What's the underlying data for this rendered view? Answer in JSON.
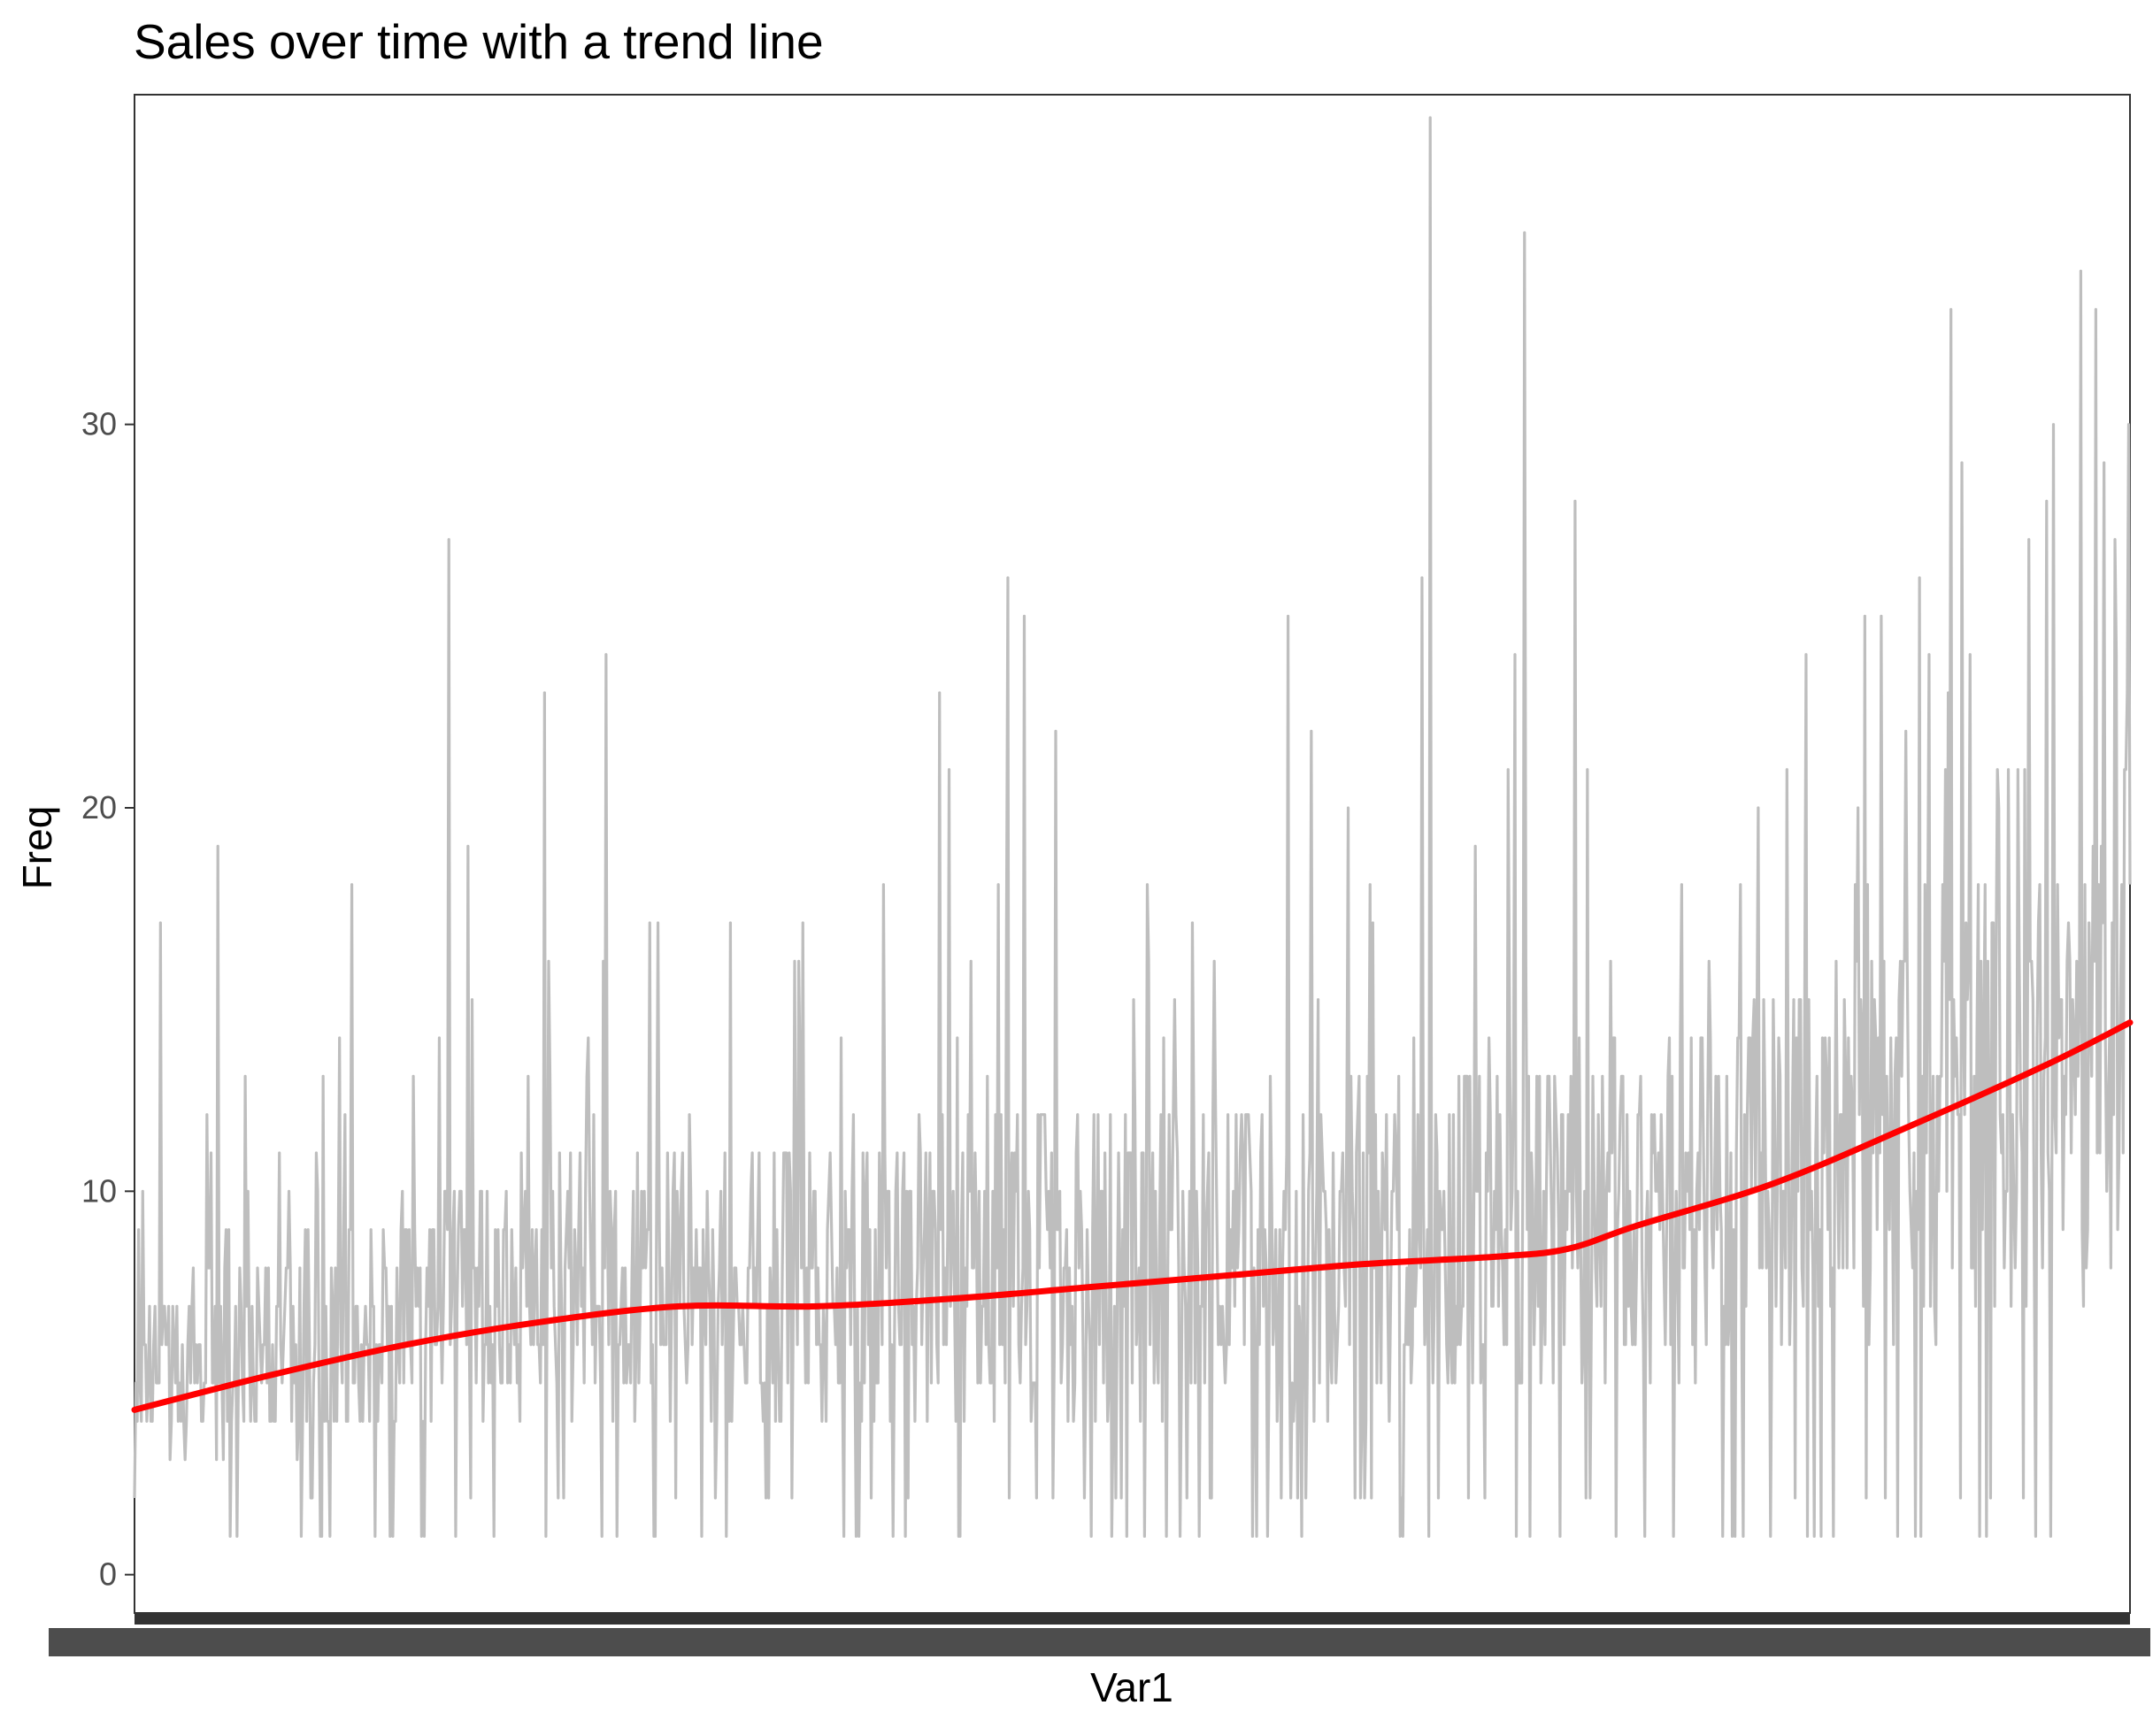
{
  "chart_data": {
    "type": "line",
    "title": "Sales over time with a trend line",
    "xlabel": "Var1",
    "ylabel": "Freq",
    "ylim": [
      -1,
      38.6
    ],
    "xlim": [
      1,
      1461
    ],
    "grid": false,
    "legend": "none",
    "y_ticks": [
      {
        "value": 0,
        "label": "0"
      },
      {
        "value": 10,
        "label": "10"
      },
      {
        "value": 20,
        "label": "20"
      },
      {
        "value": 30,
        "label": "30"
      }
    ],
    "x_tick_labels_overplotted": true,
    "colors": {
      "raw_series": "#bebebe",
      "trend": "#ff0000",
      "panel_border": "#333333",
      "tick": "#333333",
      "tick_label": "#4d4d4d",
      "text": "#000000"
    },
    "series": [
      {
        "kind": "raw",
        "x_count": 1461,
        "envelope_points": [
          {
            "x": 4,
            "y": 9
          },
          {
            "x": 20,
            "y": 17
          },
          {
            "x": 62,
            "y": 19
          },
          {
            "x": 82,
            "y": 13
          },
          {
            "x": 160,
            "y": 18
          },
          {
            "x": 231,
            "y": 27
          },
          {
            "x": 245,
            "y": 19
          },
          {
            "x": 301,
            "y": 23
          },
          {
            "x": 346,
            "y": 24
          },
          {
            "x": 490,
            "y": 17
          },
          {
            "x": 590,
            "y": 23
          },
          {
            "x": 597,
            "y": 21
          },
          {
            "x": 640,
            "y": 26
          },
          {
            "x": 652,
            "y": 25
          },
          {
            "x": 675,
            "y": 22
          },
          {
            "x": 732,
            "y": 15
          },
          {
            "x": 845,
            "y": 25
          },
          {
            "x": 862,
            "y": 22
          },
          {
            "x": 943,
            "y": 26
          },
          {
            "x": 949,
            "y": 38
          },
          {
            "x": 1011,
            "y": 24
          },
          {
            "x": 1018,
            "y": 35
          },
          {
            "x": 1055,
            "y": 28
          },
          {
            "x": 1210,
            "y": 21
          },
          {
            "x": 1330,
            "y": 33
          },
          {
            "x": 1338,
            "y": 29
          },
          {
            "x": 1405,
            "y": 30
          },
          {
            "x": 1425,
            "y": 34
          },
          {
            "x": 1436,
            "y": 33
          },
          {
            "x": 1450,
            "y": 27
          }
        ],
        "floor_min": 1,
        "typical_low": [
          {
            "x": 1,
            "y": 3
          },
          {
            "x": 300,
            "y": 4
          },
          {
            "x": 600,
            "y": 4
          },
          {
            "x": 900,
            "y": 4
          },
          {
            "x": 1100,
            "y": 5
          },
          {
            "x": 1300,
            "y": 6
          },
          {
            "x": 1461,
            "y": 7
          }
        ],
        "typical_high": [
          {
            "x": 1,
            "y": 7
          },
          {
            "x": 300,
            "y": 11
          },
          {
            "x": 600,
            "y": 12
          },
          {
            "x": 900,
            "y": 13
          },
          {
            "x": 1100,
            "y": 14
          },
          {
            "x": 1300,
            "y": 17
          },
          {
            "x": 1461,
            "y": 21
          }
        ]
      },
      {
        "kind": "trend",
        "points": [
          {
            "x": 1,
            "y": 4.3
          },
          {
            "x": 100,
            "y": 5.2
          },
          {
            "x": 200,
            "y": 6.0
          },
          {
            "x": 300,
            "y": 6.6
          },
          {
            "x": 400,
            "y": 7.0
          },
          {
            "x": 500,
            "y": 7.0
          },
          {
            "x": 600,
            "y": 7.2
          },
          {
            "x": 700,
            "y": 7.5
          },
          {
            "x": 800,
            "y": 7.8
          },
          {
            "x": 900,
            "y": 8.1
          },
          {
            "x": 1000,
            "y": 8.3
          },
          {
            "x": 1050,
            "y": 8.5
          },
          {
            "x": 1100,
            "y": 9.1
          },
          {
            "x": 1200,
            "y": 10.2
          },
          {
            "x": 1300,
            "y": 11.7
          },
          {
            "x": 1400,
            "y": 13.3
          },
          {
            "x": 1461,
            "y": 14.4
          }
        ]
      }
    ]
  }
}
